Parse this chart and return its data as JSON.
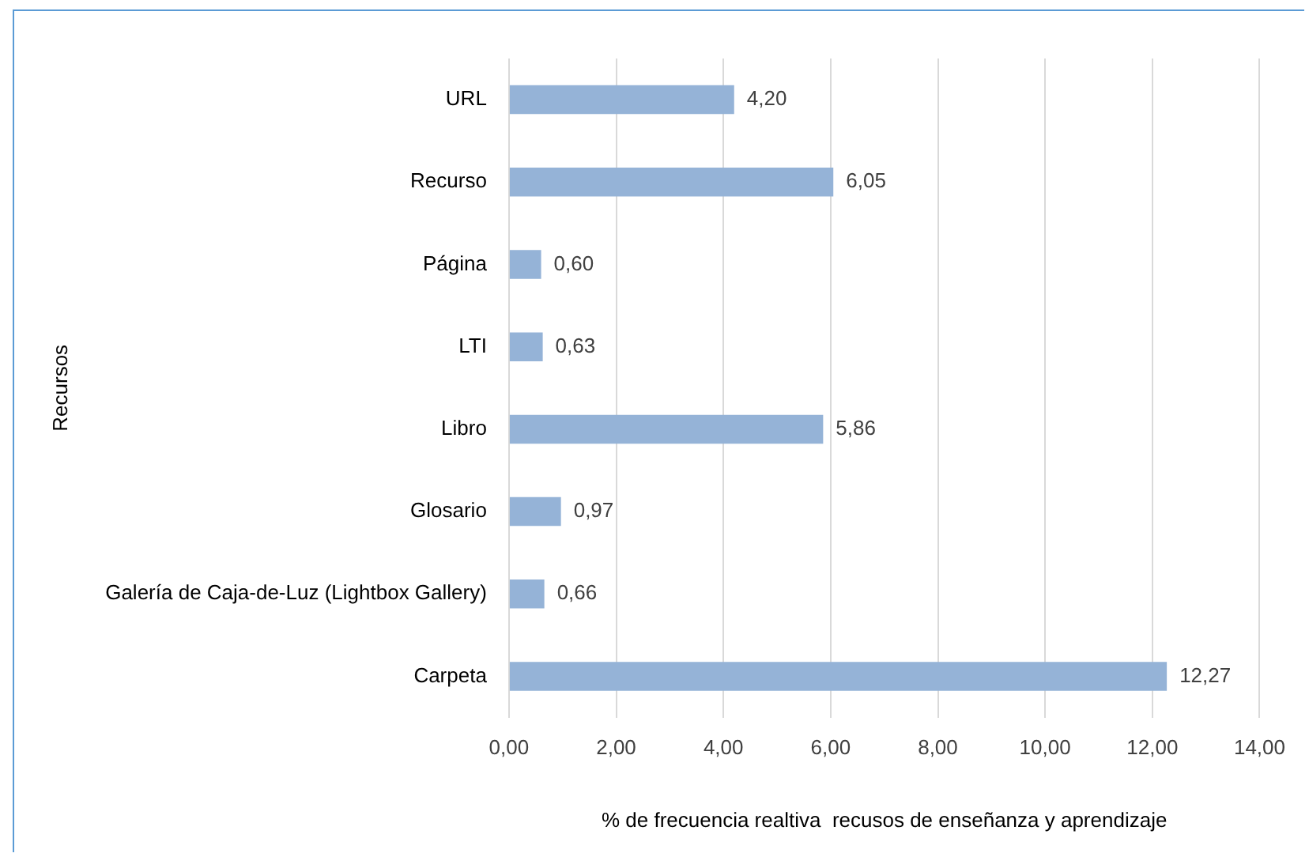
{
  "chart_data": {
    "type": "bar",
    "orientation": "horizontal",
    "categories": [
      "URL",
      "Recurso",
      "Página",
      "LTI",
      "Libro",
      "Glosario",
      "Galería de Caja-de-Luz (Lightbox Gallery)",
      "Carpeta"
    ],
    "values": [
      4.2,
      6.05,
      0.6,
      0.63,
      5.86,
      0.97,
      0.66,
      12.27
    ],
    "value_labels": [
      "4,20",
      "6,05",
      "0,60",
      "0,63",
      "5,86",
      "0,97",
      "0,66",
      "12,27"
    ],
    "color": "#95b3d7",
    "xlabel": "% de frecuencia realtiva  recusos de enseñanza y aprendizaje",
    "ylabel": "Recursos",
    "xlim": [
      0,
      14
    ],
    "xticks": [
      {
        "value": 0,
        "label": "0,00"
      },
      {
        "value": 2,
        "label": "2,00"
      },
      {
        "value": 4,
        "label": "4,00"
      },
      {
        "value": 6,
        "label": "6,00"
      },
      {
        "value": 8,
        "label": "8,00"
      },
      {
        "value": 10,
        "label": "10,00"
      },
      {
        "value": 12,
        "label": "12,00"
      },
      {
        "value": 14,
        "label": "14,00"
      }
    ],
    "grid": "x",
    "legend": false
  }
}
